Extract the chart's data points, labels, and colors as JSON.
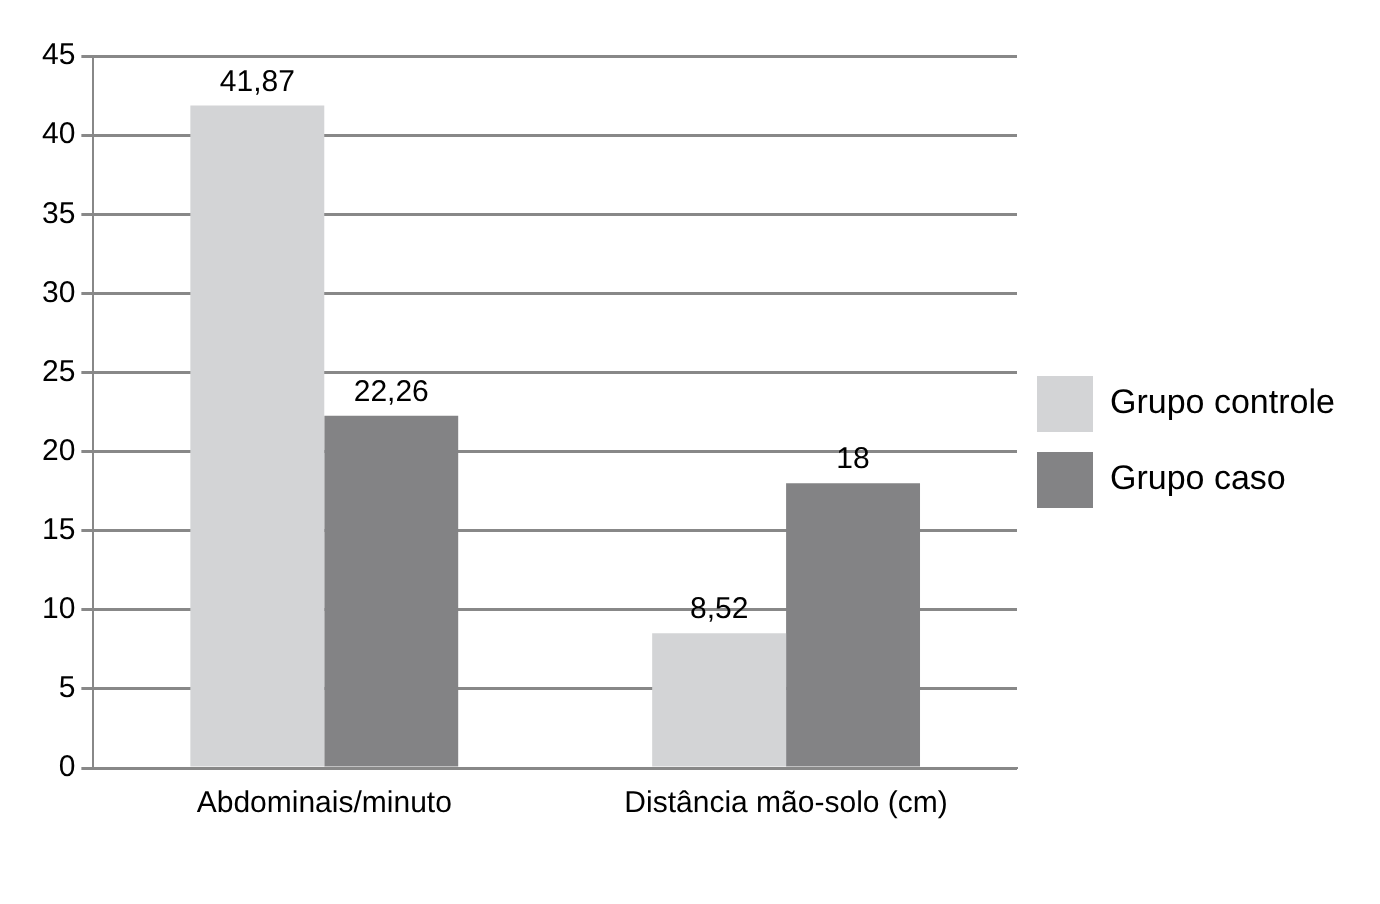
{
  "chart_data": {
    "type": "bar",
    "categories": [
      "Abdominais/minuto",
      "Distância mão-solo (cm)"
    ],
    "series": [
      {
        "name": "Grupo controle",
        "color": "#d3d4d6",
        "values": [
          41.87,
          8.52
        ],
        "value_labels": [
          "41,87",
          "8,52"
        ]
      },
      {
        "name": "Grupo caso",
        "color": "#838385",
        "values": [
          22.26,
          18
        ],
        "value_labels": [
          "22,26",
          "18"
        ]
      }
    ],
    "ylim": [
      0,
      45
    ],
    "yticks": [
      0,
      5,
      10,
      15,
      20,
      25,
      30,
      35,
      40,
      45
    ],
    "grid": "y",
    "legend": "right"
  }
}
